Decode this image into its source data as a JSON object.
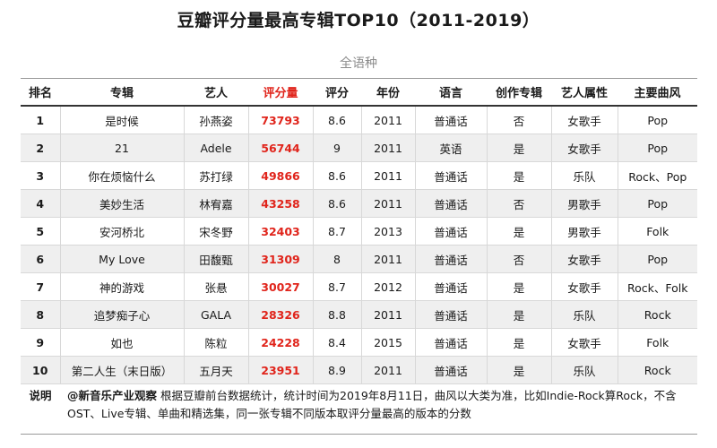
{
  "title": "豆瓣评分量最高专辑TOP10（2011-2019）",
  "subtitle": "全语种",
  "headers": [
    "排名",
    "专辑",
    "艺人",
    "评分量",
    "评分",
    "年份",
    "语言",
    "创作专辑",
    "艺人属性",
    "主要曲风"
  ],
  "rows": [
    {
      "rank": "1",
      "album": "是时候",
      "artist": "孙燕姿",
      "votes": "73793",
      "score": "8.6",
      "year": "2011",
      "language": "普通话",
      "original": "否",
      "artist_type": "女歌手",
      "genre": "Pop"
    },
    {
      "rank": "2",
      "album": "21",
      "artist": "Adele",
      "votes": "56744",
      "score": "9",
      "year": "2011",
      "language": "英语",
      "original": "是",
      "artist_type": "女歌手",
      "genre": "Pop"
    },
    {
      "rank": "3",
      "album": "你在烦恼什么",
      "artist": "苏打绿",
      "votes": "49866",
      "score": "8.6",
      "year": "2011",
      "language": "普通话",
      "original": "是",
      "artist_type": "乐队",
      "genre": "Rock、Pop"
    },
    {
      "rank": "4",
      "album": "美妙生活",
      "artist": "林宥嘉",
      "votes": "43258",
      "score": "8.6",
      "year": "2011",
      "language": "普通话",
      "original": "否",
      "artist_type": "男歌手",
      "genre": "Pop"
    },
    {
      "rank": "5",
      "album": "安河桥北",
      "artist": "宋冬野",
      "votes": "32403",
      "score": "8.7",
      "year": "2013",
      "language": "普通话",
      "original": "是",
      "artist_type": "男歌手",
      "genre": "Folk"
    },
    {
      "rank": "6",
      "album": "My Love",
      "artist": "田馥甄",
      "votes": "31309",
      "score": "8",
      "year": "2011",
      "language": "普通话",
      "original": "否",
      "artist_type": "女歌手",
      "genre": "Pop"
    },
    {
      "rank": "7",
      "album": "神的游戏",
      "artist": "张悬",
      "votes": "30027",
      "score": "8.7",
      "year": "2012",
      "language": "普通话",
      "original": "是",
      "artist_type": "女歌手",
      "genre": "Rock、Folk"
    },
    {
      "rank": "8",
      "album": "追梦痴子心",
      "artist": "GALA",
      "votes": "28326",
      "score": "8.8",
      "year": "2011",
      "language": "普通话",
      "original": "是",
      "artist_type": "乐队",
      "genre": "Rock"
    },
    {
      "rank": "9",
      "album": "如也",
      "artist": "陈粒",
      "votes": "24228",
      "score": "8.4",
      "year": "2015",
      "language": "普通话",
      "original": "是",
      "artist_type": "女歌手",
      "genre": "Folk"
    },
    {
      "rank": "10",
      "album": "第二人生（末日版）",
      "artist": "五月天",
      "votes": "23951",
      "score": "8.9",
      "year": "2011",
      "language": "普通话",
      "original": "是",
      "artist_type": "乐队",
      "genre": "Rock"
    }
  ],
  "note": {
    "label": "说明",
    "source": "@新音乐产业观察",
    "text": " 根据豆瓣前台数据统计，统计时间为2019年8月11日，曲风以大类为准，比如Indie-Rock算Rock，不含OST、Live专辑、单曲和精选集，同一张专辑不同版本取评分量最高的版本的分数"
  },
  "colors": {
    "accent_red": "#e0241b",
    "row_stripe": "#efefef",
    "subtitle_gray": "#8c8c8c"
  }
}
